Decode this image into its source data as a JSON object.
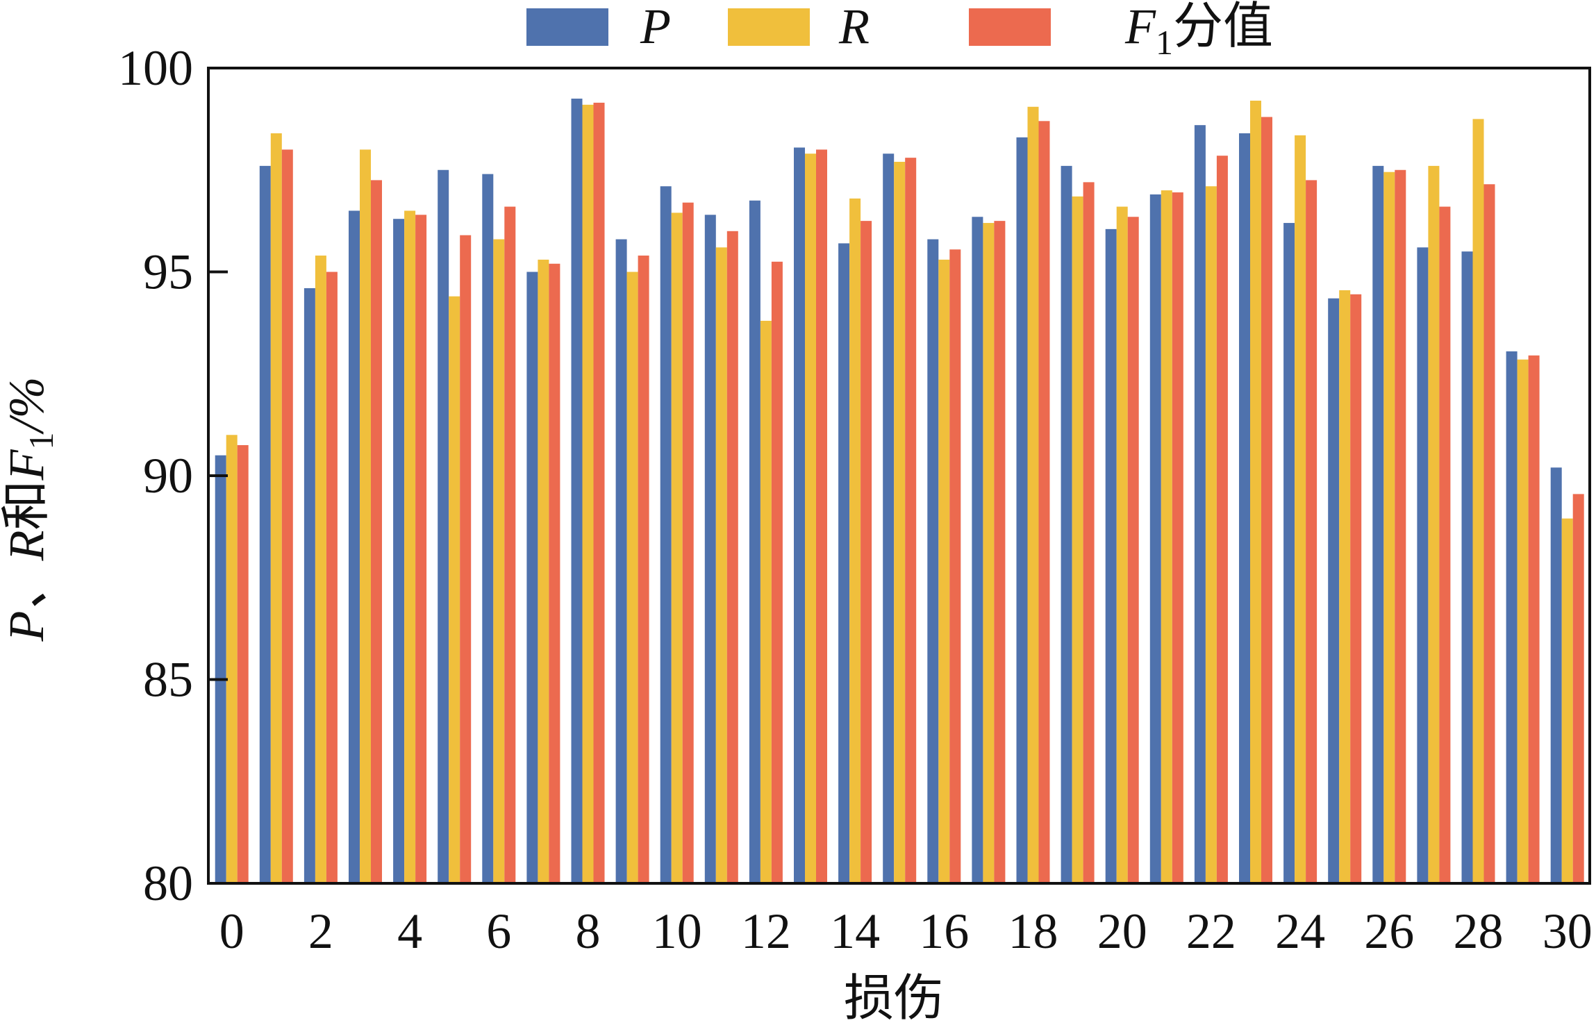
{
  "chart_data": {
    "type": "bar",
    "title": "",
    "xlabel": "损伤",
    "ylabel": {
      "a": "P、",
      "b": "R",
      "c": "和",
      "d": "F",
      "sub": "1",
      "e": "/%"
    },
    "ylim": [
      80,
      100
    ],
    "yticks": [
      "80",
      "85",
      "90",
      "95",
      "100"
    ],
    "xticks": [
      "0",
      "2",
      "4",
      "6",
      "8",
      "10",
      "12",
      "14",
      "16",
      "18",
      "20",
      "22",
      "24",
      "26",
      "28",
      "30"
    ],
    "categories": [
      0,
      1,
      2,
      3,
      4,
      5,
      6,
      7,
      8,
      9,
      10,
      11,
      12,
      13,
      14,
      15,
      16,
      17,
      18,
      19,
      20,
      21,
      22,
      23,
      24,
      25,
      26,
      27,
      28,
      29,
      30
    ],
    "legend_position": "top-center",
    "legend": [
      {
        "name": "P",
        "sub": "",
        "suffix": ""
      },
      {
        "name": "R",
        "sub": "",
        "suffix": ""
      },
      {
        "name": "F",
        "sub": "1",
        "suffix": "分值"
      }
    ],
    "colors": [
      "#4f72ad",
      "#f0bf3c",
      "#ec6a4f"
    ],
    "series": [
      {
        "name": "P",
        "values": [
          90.5,
          97.6,
          94.6,
          96.5,
          96.3,
          97.5,
          97.4,
          95.0,
          99.25,
          95.8,
          97.1,
          96.4,
          96.75,
          98.05,
          95.7,
          97.9,
          95.8,
          96.35,
          98.3,
          97.6,
          96.05,
          96.9,
          98.6,
          98.4,
          96.2,
          94.35,
          97.6,
          95.6,
          95.5,
          93.05,
          90.2
        ]
      },
      {
        "name": "R",
        "values": [
          91.0,
          98.4,
          95.4,
          98.0,
          96.5,
          94.4,
          95.8,
          95.3,
          99.1,
          95.0,
          96.45,
          95.6,
          93.8,
          97.9,
          96.8,
          97.7,
          95.3,
          96.2,
          99.05,
          96.85,
          96.6,
          97.0,
          97.1,
          99.2,
          98.35,
          94.55,
          97.45,
          97.6,
          98.75,
          92.85,
          88.95
        ]
      },
      {
        "name": "F1分值",
        "values": [
          90.75,
          98.0,
          95.0,
          97.25,
          96.4,
          95.9,
          96.6,
          95.2,
          99.15,
          95.4,
          96.7,
          96.0,
          95.25,
          98.0,
          96.25,
          97.8,
          95.55,
          96.25,
          98.7,
          97.2,
          96.35,
          96.95,
          97.85,
          98.8,
          97.25,
          94.45,
          97.5,
          96.6,
          97.15,
          92.95,
          89.55
        ]
      }
    ]
  }
}
